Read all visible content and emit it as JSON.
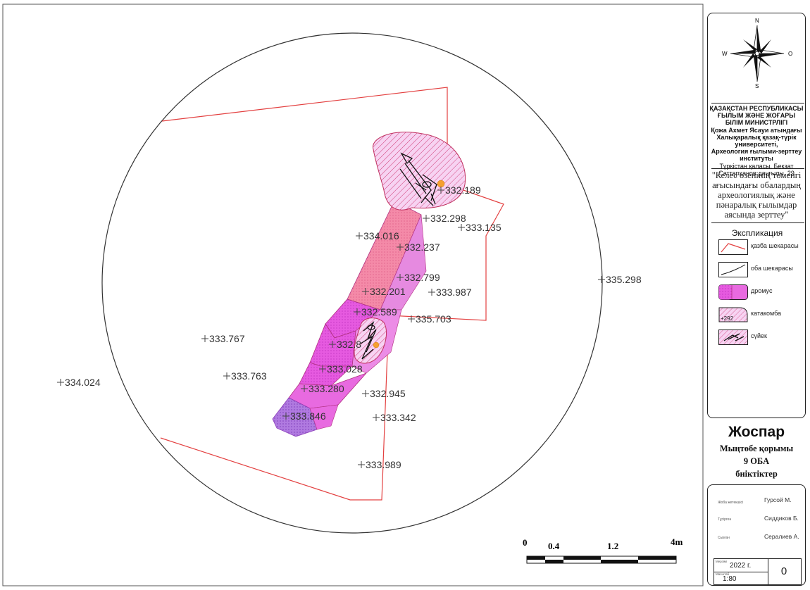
{
  "compass": {
    "n": "N",
    "s": "S",
    "w": "W",
    "e": "O"
  },
  "institution": {
    "line1": "ҚАЗАҚСТАН РЕСПУБЛИКАСЫ",
    "line2": "ҒЫЛЫМ ЖӘНЕ ЖОҒАРЫ",
    "line3": "БІЛІМ МИНИСТРЛІГІ",
    "line4": "Қожа Ахмет Ясауи атындағы",
    "line5": "Халықаралық қазақ-түрік",
    "line6": "университеті,",
    "line7": "Археология ғылыми-зерттеу",
    "line8": "институты",
    "line9": "Түркістан қаласы, Бекзат",
    "line10": "Саттарханов даңғылы, 29"
  },
  "project": {
    "line1": "\"Келес өзенінің төменгі",
    "line2": "ағысындағы обалардың",
    "line3": "археологиялық және",
    "line4": "пәнаралық ғылымдар",
    "line5": "аясында зерттеу\""
  },
  "legend": {
    "title": "Экспликация",
    "items": [
      {
        "label": "қазба шекарасы",
        "icon": "red-line-swatch"
      },
      {
        "label": "оба шекарасы",
        "icon": "black-curve-swatch"
      },
      {
        "label": "дромус",
        "icon": "magenta-fill-swatch"
      },
      {
        "label": "катакомба",
        "icon": "hatched-fill-swatch",
        "sample": "+292"
      },
      {
        "label": "сүйек",
        "icon": "bone-swatch"
      }
    ]
  },
  "title": {
    "main": "Жоспар",
    "sub1": "Мыңтөбе қорымы",
    "sub2": "9 ОБА",
    "sub3": "биіктіктер"
  },
  "signatures": [
    {
      "role": "Жоба жетекшісі",
      "name": "Гурсой М."
    },
    {
      "role": "Тұсірген",
      "name": "Сиддиков Б."
    },
    {
      "role": "Сызған",
      "name": "Сералиев А."
    }
  ],
  "footer": {
    "date_label": "Мерзімі",
    "date": "2022 г.",
    "scale_label": "Масштаб",
    "scale": "1:80",
    "sheet": "0"
  },
  "scalebar": {
    "ticks": [
      "0",
      "0.4",
      "1.2",
      "4m"
    ]
  },
  "colors": {
    "excavation": "#e34040",
    "dromos": "#e040e0",
    "catacomb": "#f5c6f0",
    "accent": "#f5a030"
  },
  "elevations": [
    {
      "label": "332.189"
    },
    {
      "label": "332.298"
    },
    {
      "label": "333.135"
    },
    {
      "label": "334.016"
    },
    {
      "label": "332.237"
    },
    {
      "label": "335.298"
    },
    {
      "label": "332.799"
    },
    {
      "label": "332.201"
    },
    {
      "label": "333.987"
    },
    {
      "label": "332.589"
    },
    {
      "label": "335.703"
    },
    {
      "label": "333.767"
    },
    {
      "label": "332.8"
    },
    {
      "label": "333.028"
    },
    {
      "label": "334.024"
    },
    {
      "label": "333.763"
    },
    {
      "label": "333.280"
    },
    {
      "label": "332.945"
    },
    {
      "label": "333.846"
    },
    {
      "label": "333.342"
    },
    {
      "label": "333.989"
    }
  ]
}
